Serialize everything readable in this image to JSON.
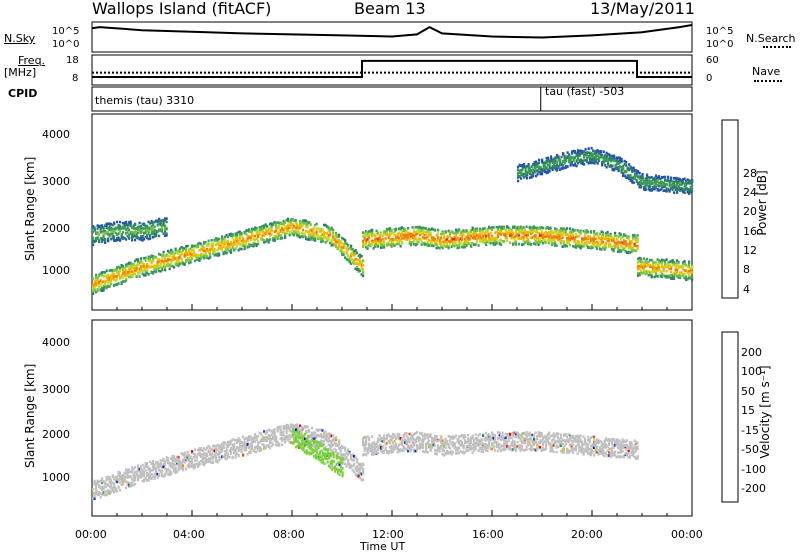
{
  "header": {
    "station": "Wallops Island (fitACF)",
    "beam": "Beam 13",
    "date": "13/May/2011"
  },
  "strip1": {
    "left_label": "N.Sky",
    "left_ticks": [
      "10^5",
      "10^0"
    ],
    "right_label": "N.Search",
    "right_ticks": [
      "10^5",
      "10^0"
    ]
  },
  "strip2": {
    "left_label_1": "Freq.",
    "left_label_2": "[MHz]",
    "left_ticks": [
      "18",
      "8"
    ],
    "right_label": "Nave",
    "right_ticks": [
      "60",
      "0"
    ]
  },
  "strip3": {
    "label": "CPID",
    "mode1": "themis (tau) 3310",
    "mode2": "tau (fast) -503"
  },
  "panels": {
    "power_ylabel": "Slant Range [km]",
    "velocity_ylabel": "Slant Range [km]",
    "y_ticks": [
      "4000",
      "3000",
      "2000",
      "1000"
    ],
    "x_ticks": [
      "00:00",
      "04:00",
      "08:00",
      "12:00",
      "16:00",
      "20:00",
      "00:00"
    ],
    "xlabel": "Time UT"
  },
  "colorbars": {
    "power": {
      "label": "Power [dB]",
      "ticks": [
        "28",
        "24",
        "20",
        "16",
        "12",
        "8",
        "4"
      ],
      "colors": [
        "#0a0ad8",
        "#2050b8",
        "#2f7a6a",
        "#3d9a5a",
        "#7fc040",
        "#c0d830",
        "#f0b800",
        "#f08000",
        "#e83000",
        "#ff0000"
      ]
    },
    "velocity": {
      "label": "Velocity [m s⁻¹]",
      "ticks": [
        "200",
        "100",
        "50",
        "15",
        "-15",
        "-50",
        "-100",
        "-200"
      ],
      "colors": [
        "#ff0000",
        "#f05000",
        "#f09000",
        "#e8c000",
        "#c0c0c0",
        "#7ad040",
        "#40a050",
        "#2a7080",
        "#2050b0",
        "#1818c8"
      ]
    }
  },
  "chart_data": [
    {
      "type": "line",
      "name": "N.Sky / N.Search",
      "x": [
        0,
        0.3,
        2,
        4,
        6,
        8,
        10,
        12,
        13,
        13.5,
        14,
        16,
        18,
        20,
        22,
        23.5,
        24
      ],
      "y": [
        4.2,
        4.4,
        3.8,
        3.5,
        3.2,
        3.0,
        2.8,
        2.6,
        3.0,
        4.4,
        3.2,
        2.6,
        2.4,
        2.8,
        3.4,
        4.4,
        4.8
      ],
      "ylim": [
        0,
        5
      ],
      "xlim": [
        0,
        24
      ]
    },
    {
      "type": "line",
      "name": "Freq / Nave",
      "series": [
        {
          "name": "Freq",
          "x": [
            0,
            10.8,
            10.8,
            21.8,
            21.8,
            24
          ],
          "y": [
            10.3,
            10.3,
            16.5,
            16.5,
            10.3,
            10.3
          ]
        },
        {
          "name": "Nave",
          "x": [
            0,
            24
          ],
          "y": [
            12,
            12
          ]
        }
      ],
      "ylim": [
        8,
        18
      ],
      "xlim": [
        0,
        24
      ]
    },
    {
      "type": "heatmap",
      "title": "Power [dB]",
      "xlabel": "Time UT",
      "ylabel": "Slant Range [km]",
      "xlim": [
        0,
        24
      ],
      "ylim": [
        200,
        4600
      ],
      "clim": [
        0,
        32
      ],
      "bands": [
        {
          "x": [
            0,
            2,
            4,
            6,
            8,
            9.5,
            10.8
          ],
          "y": [
            800,
            1200,
            1500,
            1800,
            2100,
            1900,
            1200
          ],
          "power": 24
        },
        {
          "x": [
            10.8,
            13,
            14,
            16,
            18,
            20,
            21.8
          ],
          "y": [
            1800,
            1900,
            1800,
            1900,
            1900,
            1800,
            1700
          ],
          "power": 26
        },
        {
          "x": [
            21.8,
            23,
            24
          ],
          "y": [
            1200,
            1150,
            1100
          ],
          "power": 24
        },
        {
          "x": [
            17,
            19,
            20,
            21,
            22,
            24
          ],
          "y": [
            3300,
            3600,
            3700,
            3500,
            3100,
            3000
          ],
          "power": 12
        },
        {
          "x": [
            0,
            1,
            2,
            3
          ],
          "y": [
            1900,
            2000,
            2000,
            2100
          ],
          "power": 14
        }
      ]
    },
    {
      "type": "heatmap",
      "title": "Velocity [m s-1]",
      "xlabel": "Time UT",
      "ylabel": "Slant Range [km]",
      "xlim": [
        0,
        24
      ],
      "ylim": [
        200,
        4600
      ],
      "clim": [
        -200,
        200
      ],
      "bands": [
        {
          "x": [
            0,
            2,
            4,
            6,
            8,
            9.5,
            10.8
          ],
          "y": [
            800,
            1200,
            1500,
            1800,
            2100,
            1900,
            1200
          ],
          "velocity": 0
        },
        {
          "x": [
            10.8,
            13,
            14,
            16,
            18,
            20,
            21.8
          ],
          "y": [
            1800,
            1900,
            1800,
            1900,
            1900,
            1800,
            1700
          ],
          "velocity": 0
        },
        {
          "x": [
            8,
            9,
            10
          ],
          "y": [
            2000,
            1700,
            1300
          ],
          "velocity": 40
        }
      ]
    }
  ]
}
